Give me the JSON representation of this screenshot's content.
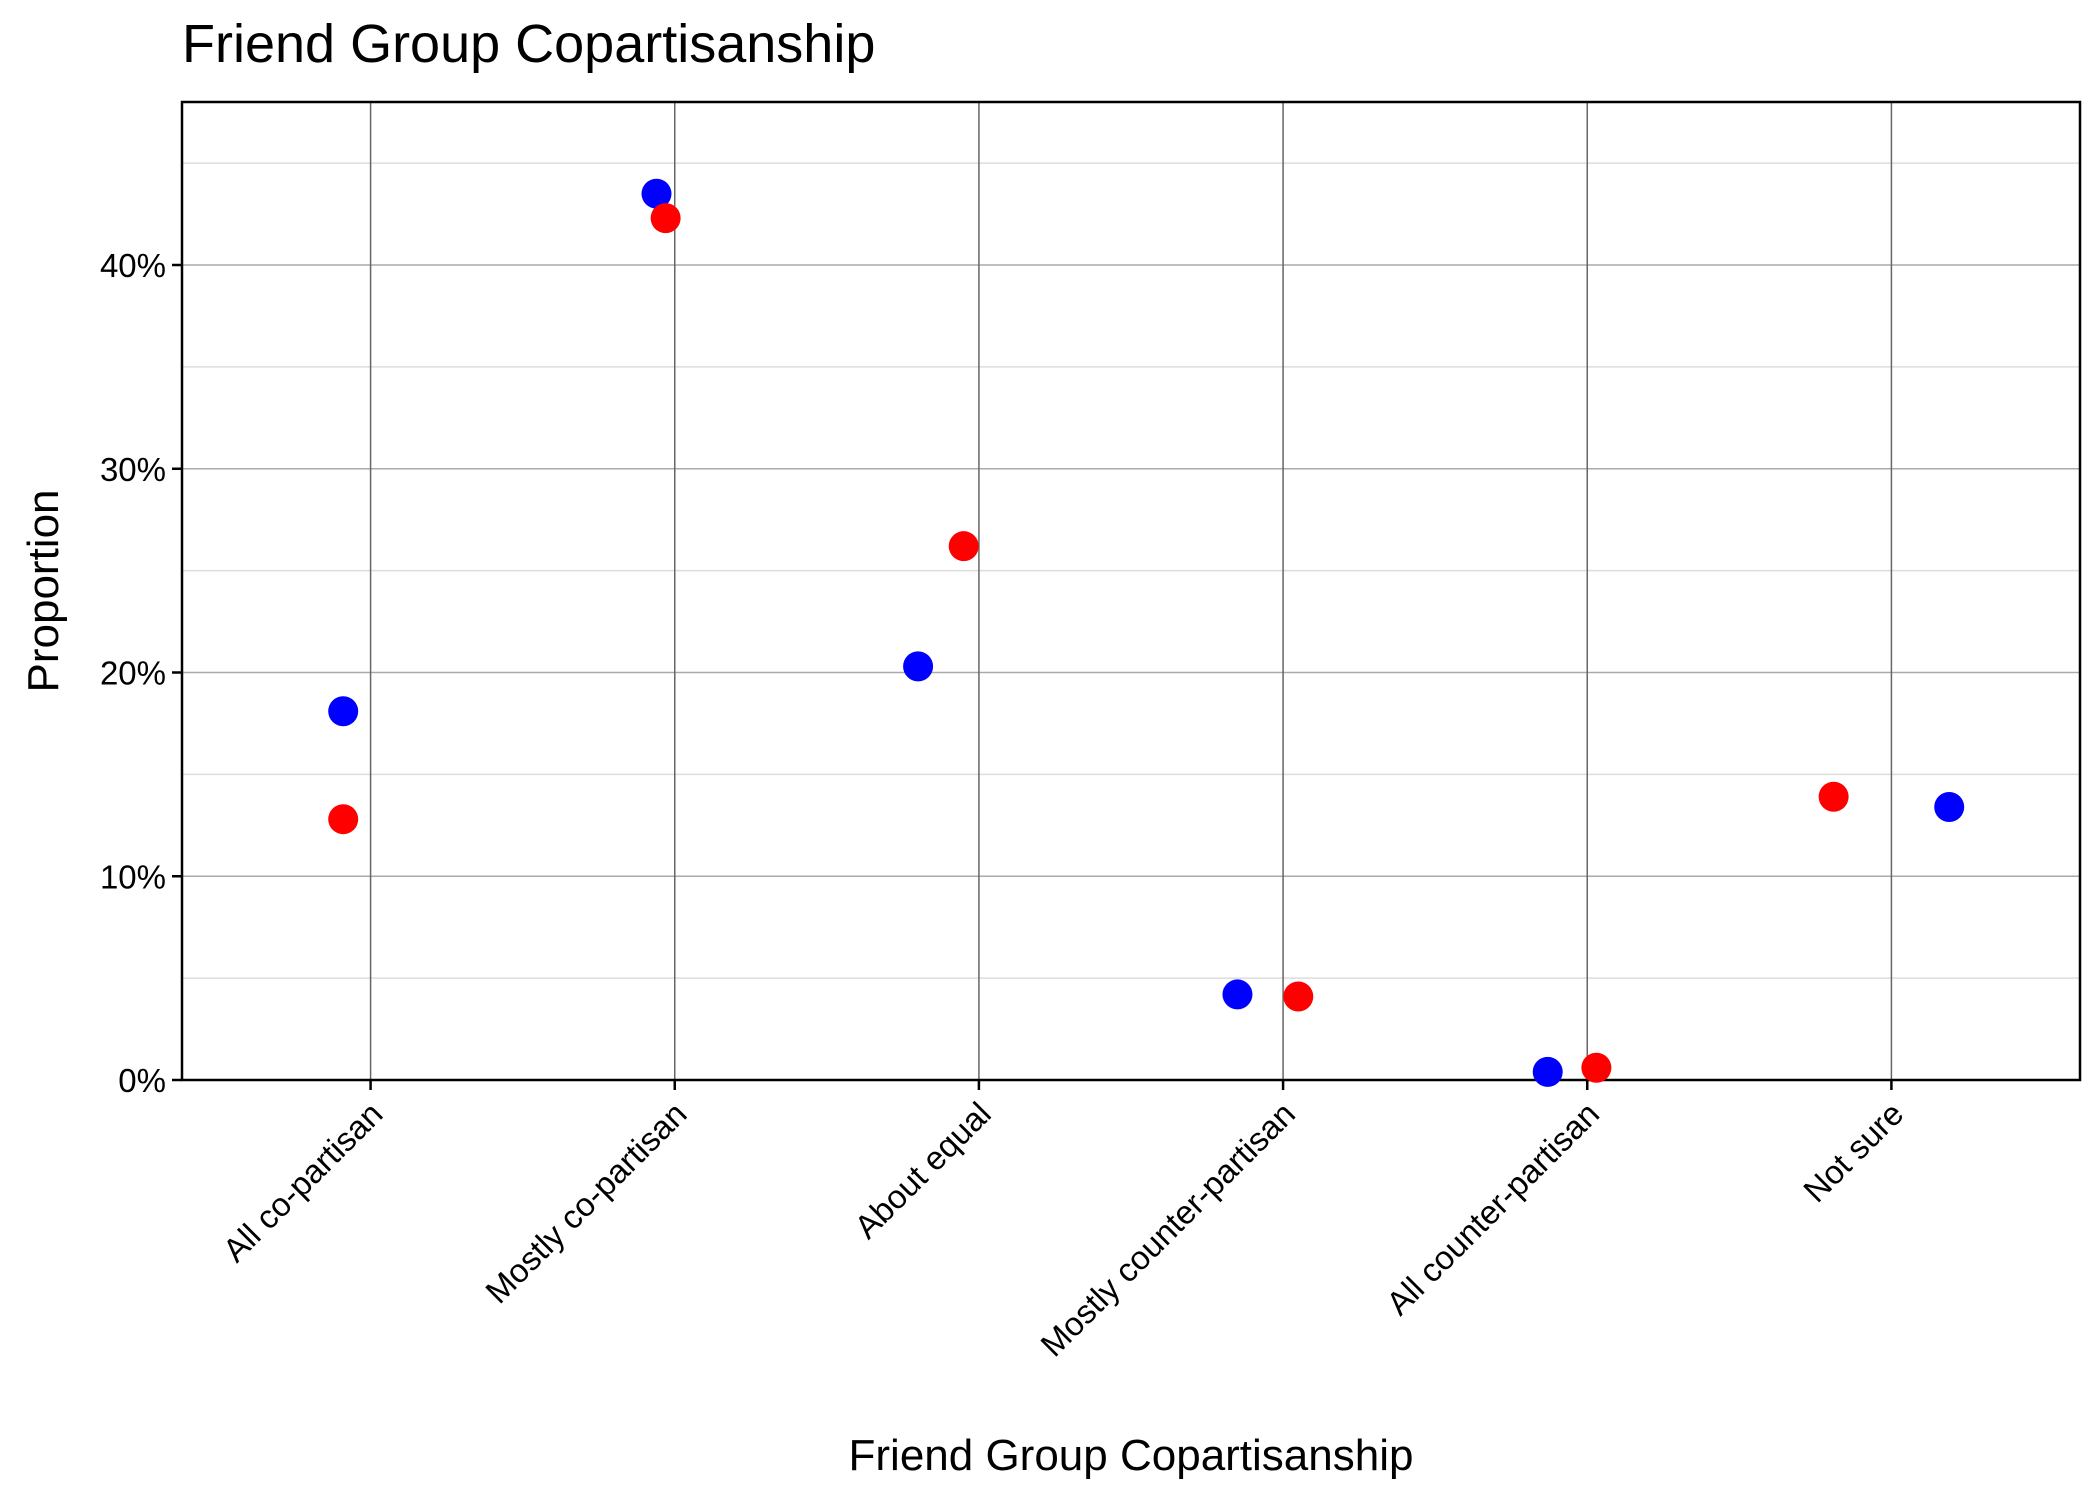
{
  "chart_data": {
    "type": "scatter",
    "title": "Friend Group Copartisanship",
    "xlabel": "Friend Group Copartisanship",
    "ylabel": "Proportion",
    "categories": [
      "All co-partisan",
      "Mostly co-partisan",
      "About equal",
      "Mostly counter-partisan",
      "All counter-partisan",
      "Not sure"
    ],
    "y_ticks": [
      "0%",
      "10%",
      "20%",
      "30%",
      "40%"
    ],
    "y_tick_values": [
      0,
      10,
      20,
      30,
      40
    ],
    "ylim": [
      0,
      48
    ],
    "grid": true,
    "series": [
      {
        "color": "#0000ff",
        "points": [
          {
            "category": "All co-partisan",
            "jitter": -0.09,
            "value": 18.1
          },
          {
            "category": "Mostly co-partisan",
            "jitter": -0.06,
            "value": 43.5
          },
          {
            "category": "About equal",
            "jitter": -0.2,
            "value": 20.3
          },
          {
            "category": "Mostly counter-partisan",
            "jitter": -0.15,
            "value": 4.2
          },
          {
            "category": "All counter-partisan",
            "jitter": -0.13,
            "value": 0.4
          },
          {
            "category": "Not sure",
            "jitter": 0.19,
            "value": 13.4
          }
        ]
      },
      {
        "color": "#ff0000",
        "points": [
          {
            "category": "All co-partisan",
            "jitter": -0.09,
            "value": 12.8
          },
          {
            "category": "Mostly co-partisan",
            "jitter": -0.03,
            "value": 42.3
          },
          {
            "category": "About equal",
            "jitter": -0.05,
            "value": 26.2
          },
          {
            "category": "Mostly counter-partisan",
            "jitter": 0.05,
            "value": 4.1
          },
          {
            "category": "All counter-partisan",
            "jitter": 0.03,
            "value": 0.6
          },
          {
            "category": "Not sure",
            "jitter": -0.19,
            "value": 13.9
          }
        ]
      }
    ]
  }
}
